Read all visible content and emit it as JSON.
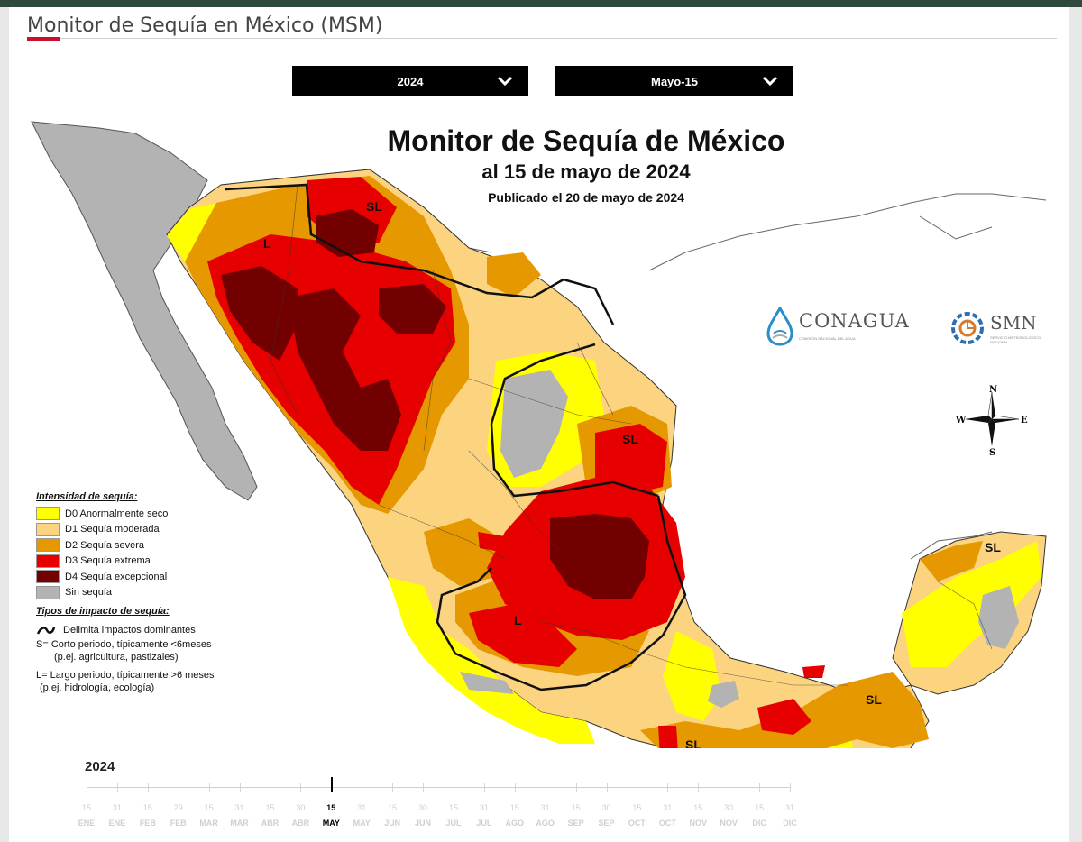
{
  "page": {
    "title": "Monitor de Sequía en México (MSM)"
  },
  "selectors": {
    "year": "2024",
    "period": "Mayo-15"
  },
  "map": {
    "title": "Monitor de Sequía de México",
    "subtitle": "al 15 de mayo de 2024",
    "published": "Publicado el 20 de mayo de 2024",
    "impact_labels": [
      "SL",
      "L",
      "SL",
      "L",
      "SL",
      "SL",
      "SL"
    ],
    "colors": {
      "D0": "#ffff00",
      "D1": "#fcd37f",
      "D2": "#e69800",
      "D3": "#e60000",
      "D4": "#730000",
      "none": "#b3b3b3"
    }
  },
  "logos": {
    "conagua": "CONAGUA",
    "conagua_sub": "COMISIÓN NACIONAL DEL AGUA",
    "smn": "SMN",
    "smn_sub": "SERVICIO METEOROLÓGICO NACIONAL"
  },
  "compass": {
    "n": "N",
    "s": "S",
    "e": "E",
    "w": "W"
  },
  "legend": {
    "intensity_title": "Intensidad de sequía:",
    "items": [
      {
        "code": "D0",
        "label": "D0 Anormalmente seco",
        "color": "#ffff00"
      },
      {
        "code": "D1",
        "label": "D1 Sequía moderada",
        "color": "#fcd37f"
      },
      {
        "code": "D2",
        "label": "D2 Sequía severa",
        "color": "#e69800"
      },
      {
        "code": "D3",
        "label": "D3 Sequía extrema",
        "color": "#e60000"
      },
      {
        "code": "D4",
        "label": "D4 Sequía excepcional",
        "color": "#730000"
      },
      {
        "code": "none",
        "label": "Sin sequía",
        "color": "#b3b3b3"
      }
    ],
    "impact_title": "Tipos de impacto de sequía:",
    "impact_line": "Delimita impactos dominantes",
    "impact_s": "S= Corto periodo, típicamente <6meses",
    "impact_s_eg": "(p.ej. agricultura, pastizales)",
    "impact_l": "L= Largo periodo, típicamente >6 meses",
    "impact_l_eg": "(p.ej. hidrología, ecología)"
  },
  "timeline": {
    "year": "2024",
    "active_index": 8,
    "points": [
      {
        "day": "15",
        "month": "ENE"
      },
      {
        "day": "31",
        "month": "ENE"
      },
      {
        "day": "15",
        "month": "FEB"
      },
      {
        "day": "29",
        "month": "FEB"
      },
      {
        "day": "15",
        "month": "MAR"
      },
      {
        "day": "31",
        "month": "MAR"
      },
      {
        "day": "15",
        "month": "ABR"
      },
      {
        "day": "30",
        "month": "ABR"
      },
      {
        "day": "15",
        "month": "MAY"
      },
      {
        "day": "31",
        "month": "MAY"
      },
      {
        "day": "15",
        "month": "JUN"
      },
      {
        "day": "30",
        "month": "JUN"
      },
      {
        "day": "15",
        "month": "JUL"
      },
      {
        "day": "31",
        "month": "JUL"
      },
      {
        "day": "15",
        "month": "AGO"
      },
      {
        "day": "31",
        "month": "AGO"
      },
      {
        "day": "15",
        "month": "SEP"
      },
      {
        "day": "30",
        "month": "SEP"
      },
      {
        "day": "15",
        "month": "OCT"
      },
      {
        "day": "31",
        "month": "OCT"
      },
      {
        "day": "15",
        "month": "NOV"
      },
      {
        "day": "30",
        "month": "NOV"
      },
      {
        "day": "15",
        "month": "DIC"
      },
      {
        "day": "31",
        "month": "DIC"
      }
    ]
  }
}
